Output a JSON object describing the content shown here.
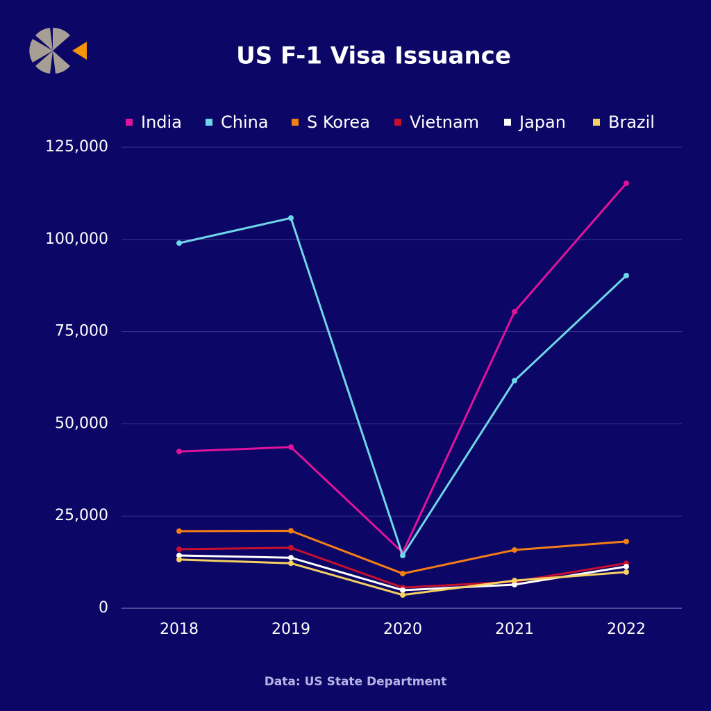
{
  "chart_data": {
    "type": "line",
    "title": "US F-1 Visa Issuance",
    "source": "Data: US State Department",
    "categories": [
      "2018",
      "2019",
      "2020",
      "2021",
      "2022"
    ],
    "series": [
      {
        "name": "India",
        "color": "#e0139a",
        "values": [
          42500,
          43700,
          15100,
          80400,
          115200
        ]
      },
      {
        "name": "China",
        "color": "#6fd6e8",
        "values": [
          99000,
          105800,
          14300,
          61700,
          90200
        ]
      },
      {
        "name": "S Korea",
        "color": "#f57f17",
        "values": [
          20900,
          21000,
          9400,
          15800,
          18100
        ]
      },
      {
        "name": "Vietnam",
        "color": "#c8102e",
        "values": [
          16000,
          16400,
          5600,
          7200,
          12200
        ]
      },
      {
        "name": "Japan",
        "color": "#ffffff",
        "values": [
          14300,
          13700,
          4900,
          6400,
          11300
        ]
      },
      {
        "name": "Brazil",
        "color": "#f5d063",
        "values": [
          13200,
          12200,
          3600,
          7500,
          9800
        ]
      }
    ],
    "ylim": [
      0,
      125000
    ],
    "yticks": [
      0,
      {
        "value": 25000,
        "label": "25,000"
      },
      {
        "value": 50000,
        "label": "50,000"
      },
      {
        "value": 75000,
        "label": "75,000"
      },
      {
        "value": 100000,
        "label": "100,000"
      },
      {
        "value": 125000,
        "label": "125,000"
      }
    ],
    "grid": true,
    "legend": "top"
  }
}
